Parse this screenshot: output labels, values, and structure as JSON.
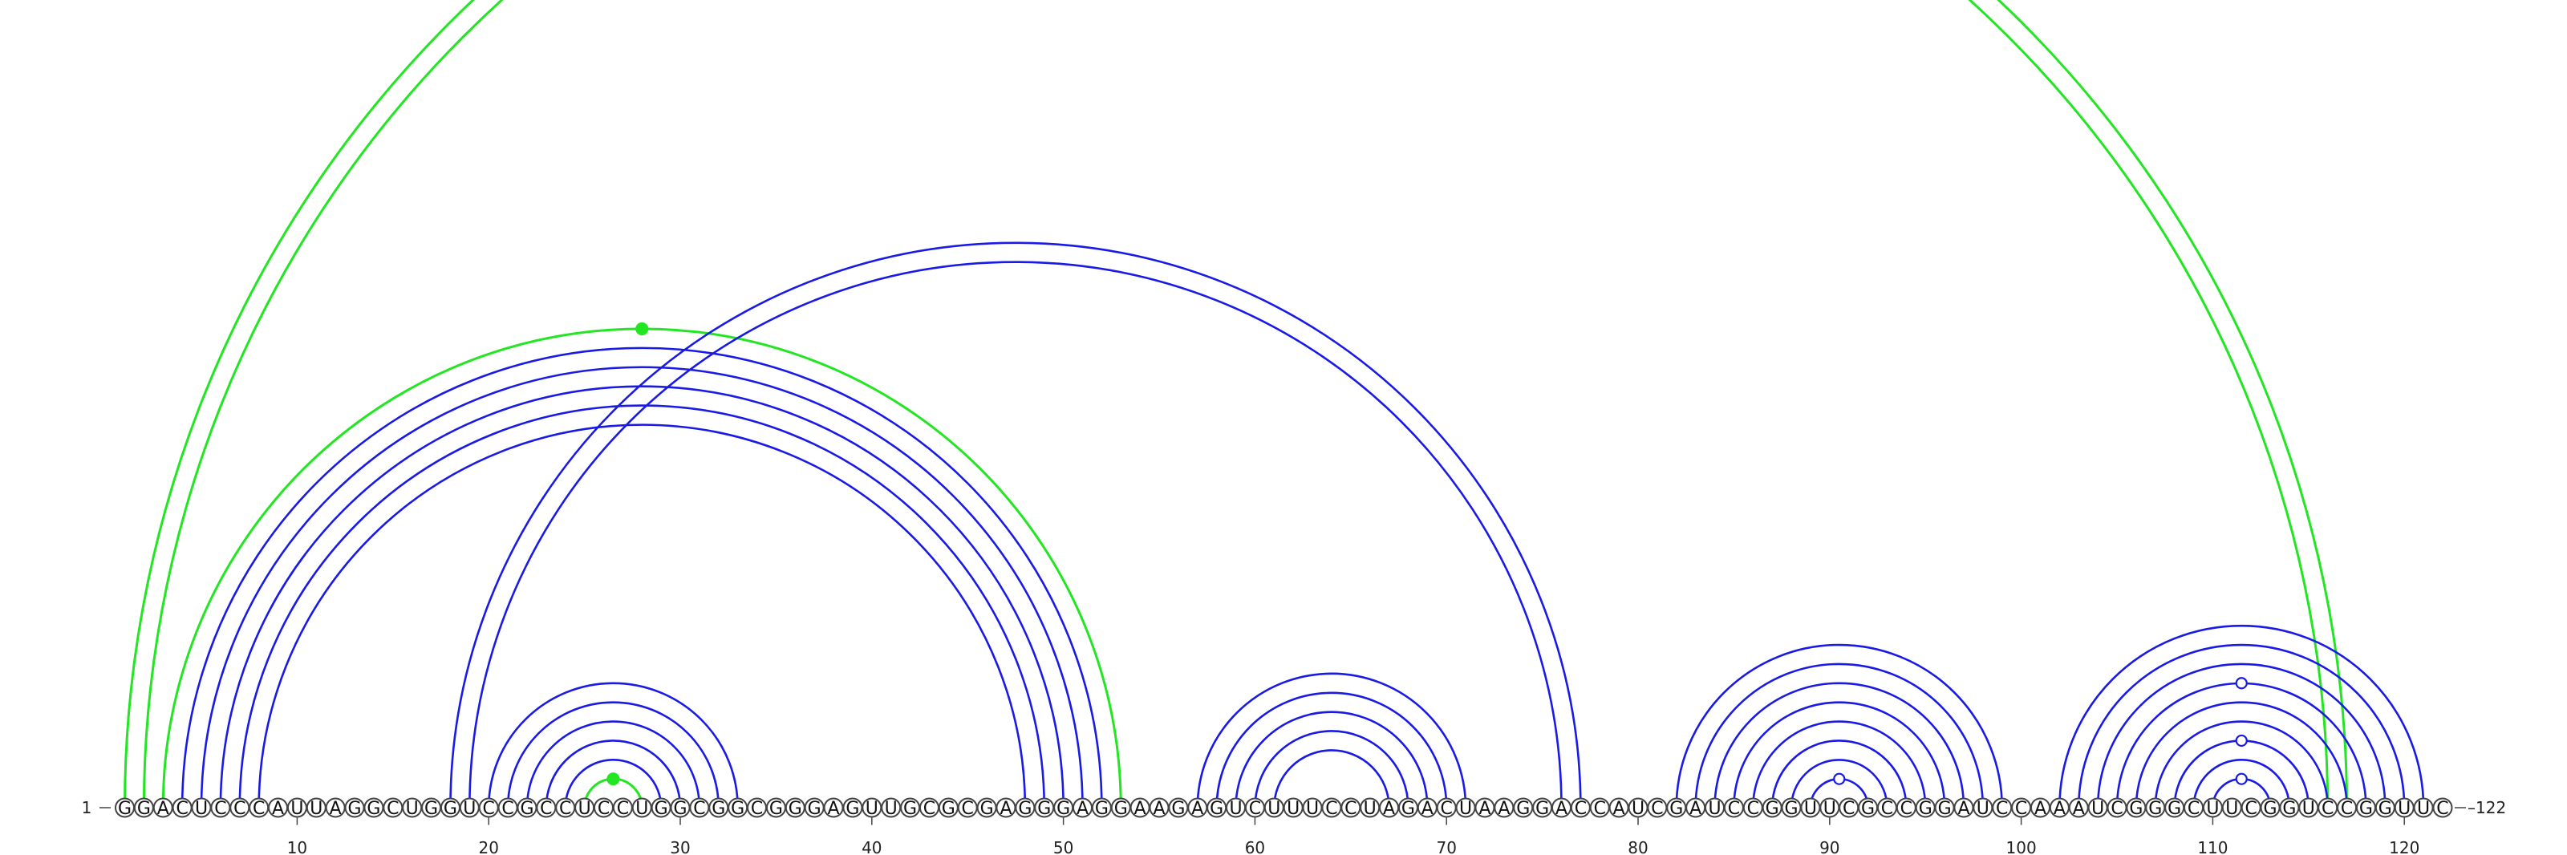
{
  "sequence": "GGACUCCCAUUAGGCUGGUCCGCCUCCUGGCGGCGGGAGUUGCGCGAGGGAGGAAGAGUCUUUCCUAGACUAAGGACCAUCGAUCCGGUUCGCCGGAUCCAAAUCGGGCUUCGGUCCGGUUC",
  "start_label": "1",
  "end_label": "122",
  "tick_labels": [
    "10",
    "20",
    "30",
    "40",
    "50",
    "60",
    "70",
    "80",
    "90",
    "100",
    "110",
    "120"
  ],
  "colors": {
    "blue": "#1a1ae6",
    "green": "#22e622"
  },
  "arcs": [
    {
      "i": 1,
      "j": 117,
      "color": "green"
    },
    {
      "i": 2,
      "j": 116,
      "color": "green"
    },
    {
      "i": 3,
      "j": 53,
      "color": "green"
    },
    {
      "i": 4,
      "j": 52,
      "color": "blue"
    },
    {
      "i": 5,
      "j": 51,
      "color": "blue"
    },
    {
      "i": 6,
      "j": 50,
      "color": "blue"
    },
    {
      "i": 7,
      "j": 49,
      "color": "blue"
    },
    {
      "i": 8,
      "j": 48,
      "color": "blue"
    },
    {
      "i": 18,
      "j": 77,
      "color": "blue"
    },
    {
      "i": 19,
      "j": 76,
      "color": "blue"
    },
    {
      "i": 20,
      "j": 33,
      "color": "blue"
    },
    {
      "i": 21,
      "j": 32,
      "color": "blue"
    },
    {
      "i": 22,
      "j": 31,
      "color": "blue"
    },
    {
      "i": 23,
      "j": 30,
      "color": "blue"
    },
    {
      "i": 24,
      "j": 29,
      "color": "blue"
    },
    {
      "i": 25,
      "j": 28,
      "color": "green"
    },
    {
      "i": 57,
      "j": 71,
      "color": "blue"
    },
    {
      "i": 58,
      "j": 70,
      "color": "blue"
    },
    {
      "i": 59,
      "j": 69,
      "color": "blue"
    },
    {
      "i": 60,
      "j": 68,
      "color": "blue"
    },
    {
      "i": 61,
      "j": 67,
      "color": "blue"
    },
    {
      "i": 82,
      "j": 99,
      "color": "blue"
    },
    {
      "i": 83,
      "j": 98,
      "color": "blue"
    },
    {
      "i": 84,
      "j": 97,
      "color": "blue"
    },
    {
      "i": 85,
      "j": 96,
      "color": "blue"
    },
    {
      "i": 86,
      "j": 95,
      "color": "blue"
    },
    {
      "i": 87,
      "j": 94,
      "color": "blue"
    },
    {
      "i": 88,
      "j": 93,
      "color": "blue"
    },
    {
      "i": 89,
      "j": 92,
      "color": "blue"
    },
    {
      "i": 102,
      "j": 121,
      "color": "blue"
    },
    {
      "i": 103,
      "j": 120,
      "color": "blue"
    },
    {
      "i": 104,
      "j": 119,
      "color": "blue"
    },
    {
      "i": 105,
      "j": 118,
      "color": "blue"
    },
    {
      "i": 106,
      "j": 117,
      "color": "blue"
    },
    {
      "i": 107,
      "j": 116,
      "color": "blue"
    },
    {
      "i": 108,
      "j": 115,
      "color": "blue"
    },
    {
      "i": 109,
      "j": 114,
      "color": "blue"
    },
    {
      "i": 110,
      "j": 113,
      "color": "blue"
    }
  ],
  "markers": [
    {
      "arc_i": 3,
      "arc_j": 53,
      "color": "green",
      "filled": true
    },
    {
      "arc_i": 25,
      "arc_j": 28,
      "color": "green",
      "filled": true
    },
    {
      "arc_i": 89,
      "arc_j": 92,
      "color": "blue",
      "filled": false
    },
    {
      "arc_i": 110,
      "arc_j": 113,
      "color": "blue",
      "filled": false
    },
    {
      "arc_i": 108,
      "arc_j": 115,
      "color": "blue",
      "filled": false
    },
    {
      "arc_i": 105,
      "arc_j": 118,
      "color": "blue",
      "filled": false
    }
  ]
}
